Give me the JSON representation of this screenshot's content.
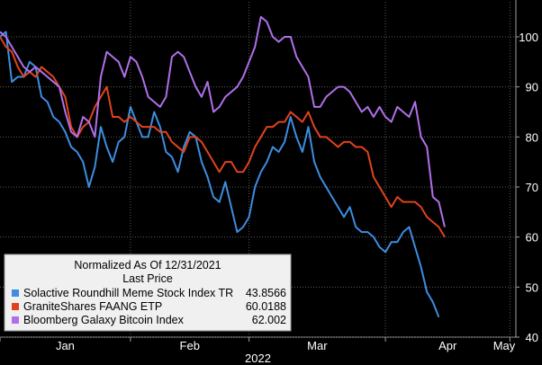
{
  "chart_data": {
    "type": "line",
    "title": "",
    "xlabel": "2022",
    "ylabel": "",
    "ylim": [
      40,
      107
    ],
    "yticks": [
      40,
      50,
      60,
      70,
      80,
      90,
      100
    ],
    "x_tick_labels": [
      "Jan",
      "Feb",
      "Mar",
      "Apr",
      "May"
    ],
    "x_tick_positions": [
      0,
      22,
      42,
      65,
      86
    ],
    "x_range": [
      0,
      87
    ],
    "grid": true,
    "background": "#000000",
    "legend": {
      "placement": "bottom-left",
      "header_line1": "Normalized As Of 12/31/2021",
      "header_line2": "Last Price",
      "entries": [
        {
          "name": "Solactive Roundhill Meme Stock Index TR",
          "last": "43.8566",
          "color": "#3d8de0"
        },
        {
          "name": "GraniteShares FAANG ETP",
          "last": "60.0188",
          "color": "#e0431c"
        },
        {
          "name": "Bloomberg Galaxy Bitcoin Index",
          "last": "62.002",
          "color": "#b070e8"
        }
      ]
    },
    "series": [
      {
        "name": "Solactive Roundhill Meme Stock Index TR",
        "color": "#3d8de0",
        "values": [
          100,
          101,
          91,
          92,
          92,
          95,
          94,
          88,
          87,
          84,
          83,
          81,
          78,
          77,
          75,
          70,
          74,
          82,
          78,
          75,
          79,
          80,
          86,
          83,
          80,
          80,
          85,
          82,
          77,
          76,
          73,
          78,
          81,
          80,
          75,
          72,
          68,
          67,
          71,
          66,
          61,
          62,
          64,
          70,
          73,
          75,
          78,
          77,
          79,
          84,
          80,
          77,
          82,
          75,
          72,
          70,
          68,
          66,
          64,
          66,
          62,
          61,
          61,
          60,
          58,
          57,
          59,
          59,
          61,
          62,
          58,
          54,
          49,
          47,
          44
        ]
      },
      {
        "name": "GraniteShares FAANG ETP",
        "color": "#e0431c",
        "values": [
          100,
          98,
          97,
          94,
          92,
          93,
          92,
          94,
          93,
          92,
          90,
          88,
          82,
          80,
          82,
          83,
          86,
          88,
          90,
          84,
          84,
          83,
          84,
          83,
          82,
          82,
          82,
          81,
          81,
          79,
          78,
          77,
          80,
          80,
          79,
          77,
          75,
          73,
          75,
          75,
          73,
          73,
          75,
          78,
          80,
          82,
          82,
          83,
          83,
          85,
          84,
          83,
          85,
          82,
          80,
          80,
          79,
          78,
          79,
          79,
          78,
          78,
          77,
          72,
          70,
          68,
          66,
          68,
          67,
          67,
          67,
          66,
          64,
          63,
          62,
          60
        ]
      },
      {
        "name": "Bloomberg Galaxy Bitcoin Index",
        "color": "#b070e8",
        "values": [
          101,
          100,
          98,
          96,
          94,
          93,
          94,
          93,
          92,
          91,
          90,
          85,
          81,
          80,
          84,
          83,
          80,
          92,
          97,
          96,
          95,
          92,
          96,
          95,
          92,
          88,
          87,
          86,
          88,
          96,
          97,
          96,
          93,
          90,
          88,
          91,
          85,
          86,
          88,
          89,
          90,
          92,
          95,
          98,
          104,
          103,
          100,
          99,
          100,
          100,
          96,
          94,
          92,
          86,
          86,
          88,
          89,
          90,
          90,
          89,
          87,
          85,
          86,
          84,
          86,
          84,
          83,
          86,
          85,
          84,
          87,
          80,
          78,
          68,
          67,
          62
        ]
      }
    ]
  }
}
